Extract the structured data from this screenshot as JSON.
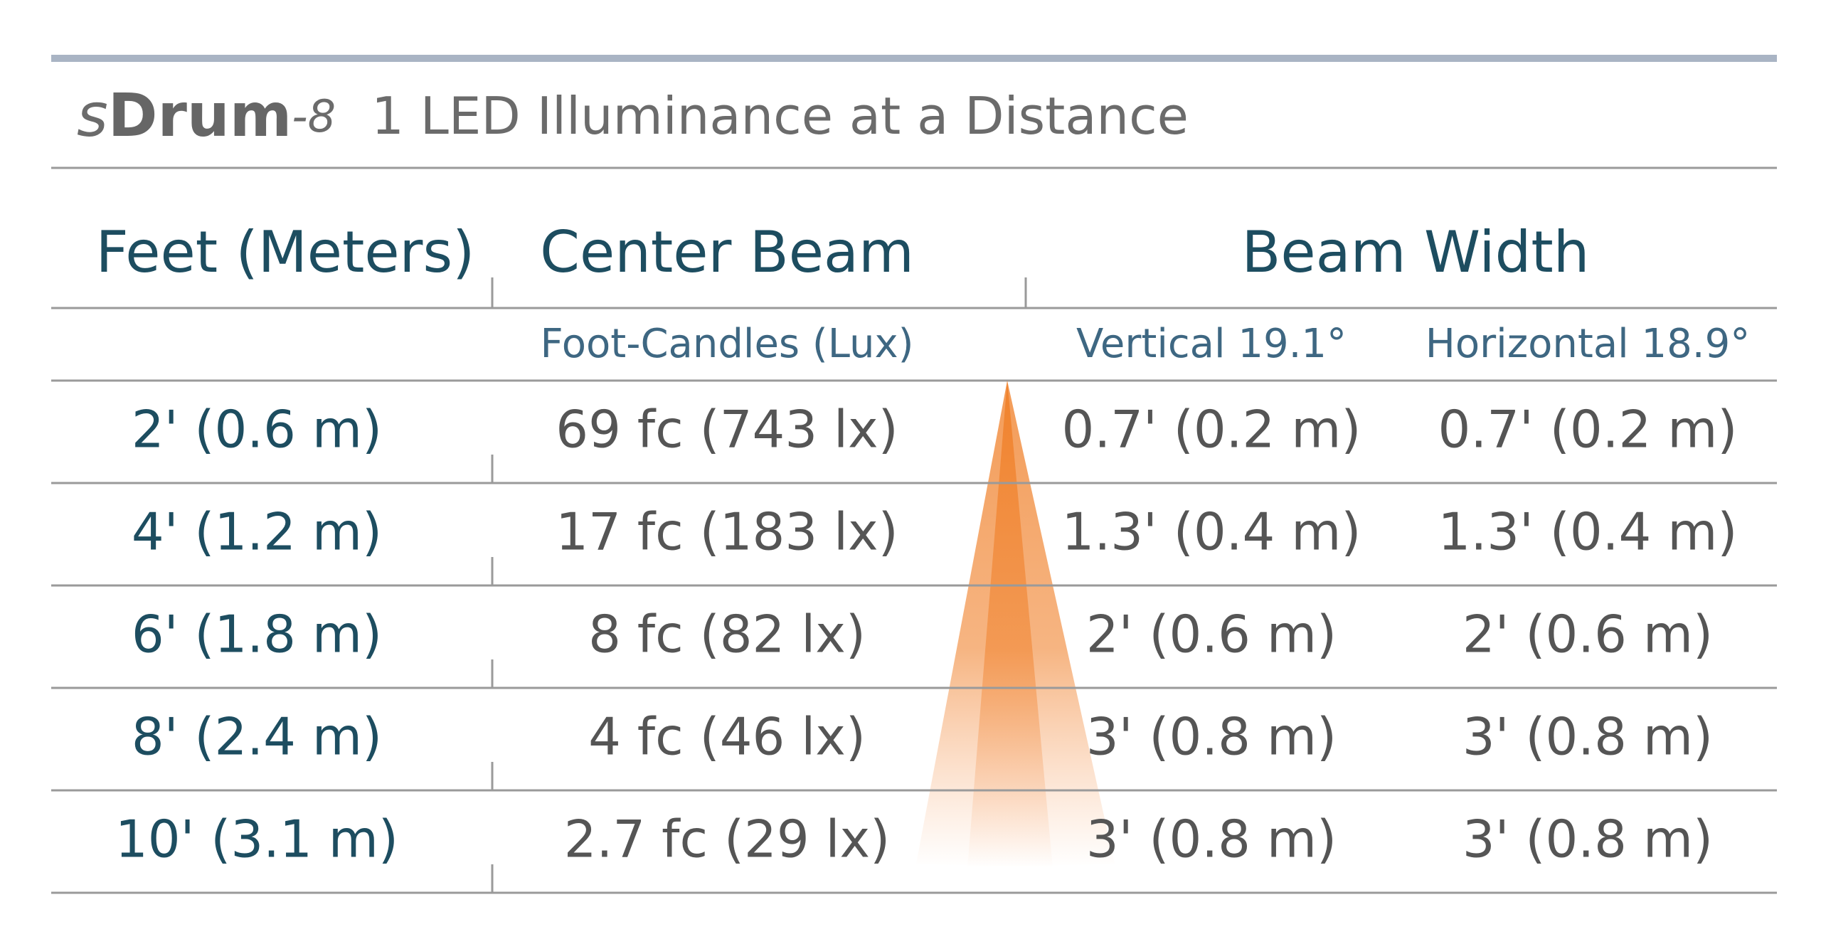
{
  "title": {
    "brand_s": "s",
    "brand_name": "Drum",
    "brand_model": "-8",
    "text": "1 LED Illuminance at a Distance"
  },
  "table": {
    "headers": [
      "Feet (Meters)",
      "Center Beam",
      "Beam Width"
    ],
    "subheaders": [
      "Foot-Candles (Lux)",
      "Vertical 19.1°",
      "Horizontal 18.9°"
    ],
    "rows": [
      [
        "2' (0.6 m)",
        "69 fc (743 lx)",
        "0.7' (0.2 m)",
        "0.7' (0.2 m)"
      ],
      [
        "4' (1.2 m)",
        "17 fc (183 lx)",
        "1.3' (0.4 m)",
        "1.3' (0.4 m)"
      ],
      [
        "6' (1.8 m)",
        "8 fc (82 lx)",
        "2' (0.6 m)",
        "2' (0.6 m)"
      ],
      [
        "8' (2.4 m)",
        "4 fc (46 lx)",
        "3' (0.8 m)",
        "3' (0.8 m)"
      ],
      [
        "10' (3.1 m)",
        "2.7 fc (29 lx)",
        "3' (0.8 m)",
        "3' (0.8 m)"
      ]
    ]
  }
}
